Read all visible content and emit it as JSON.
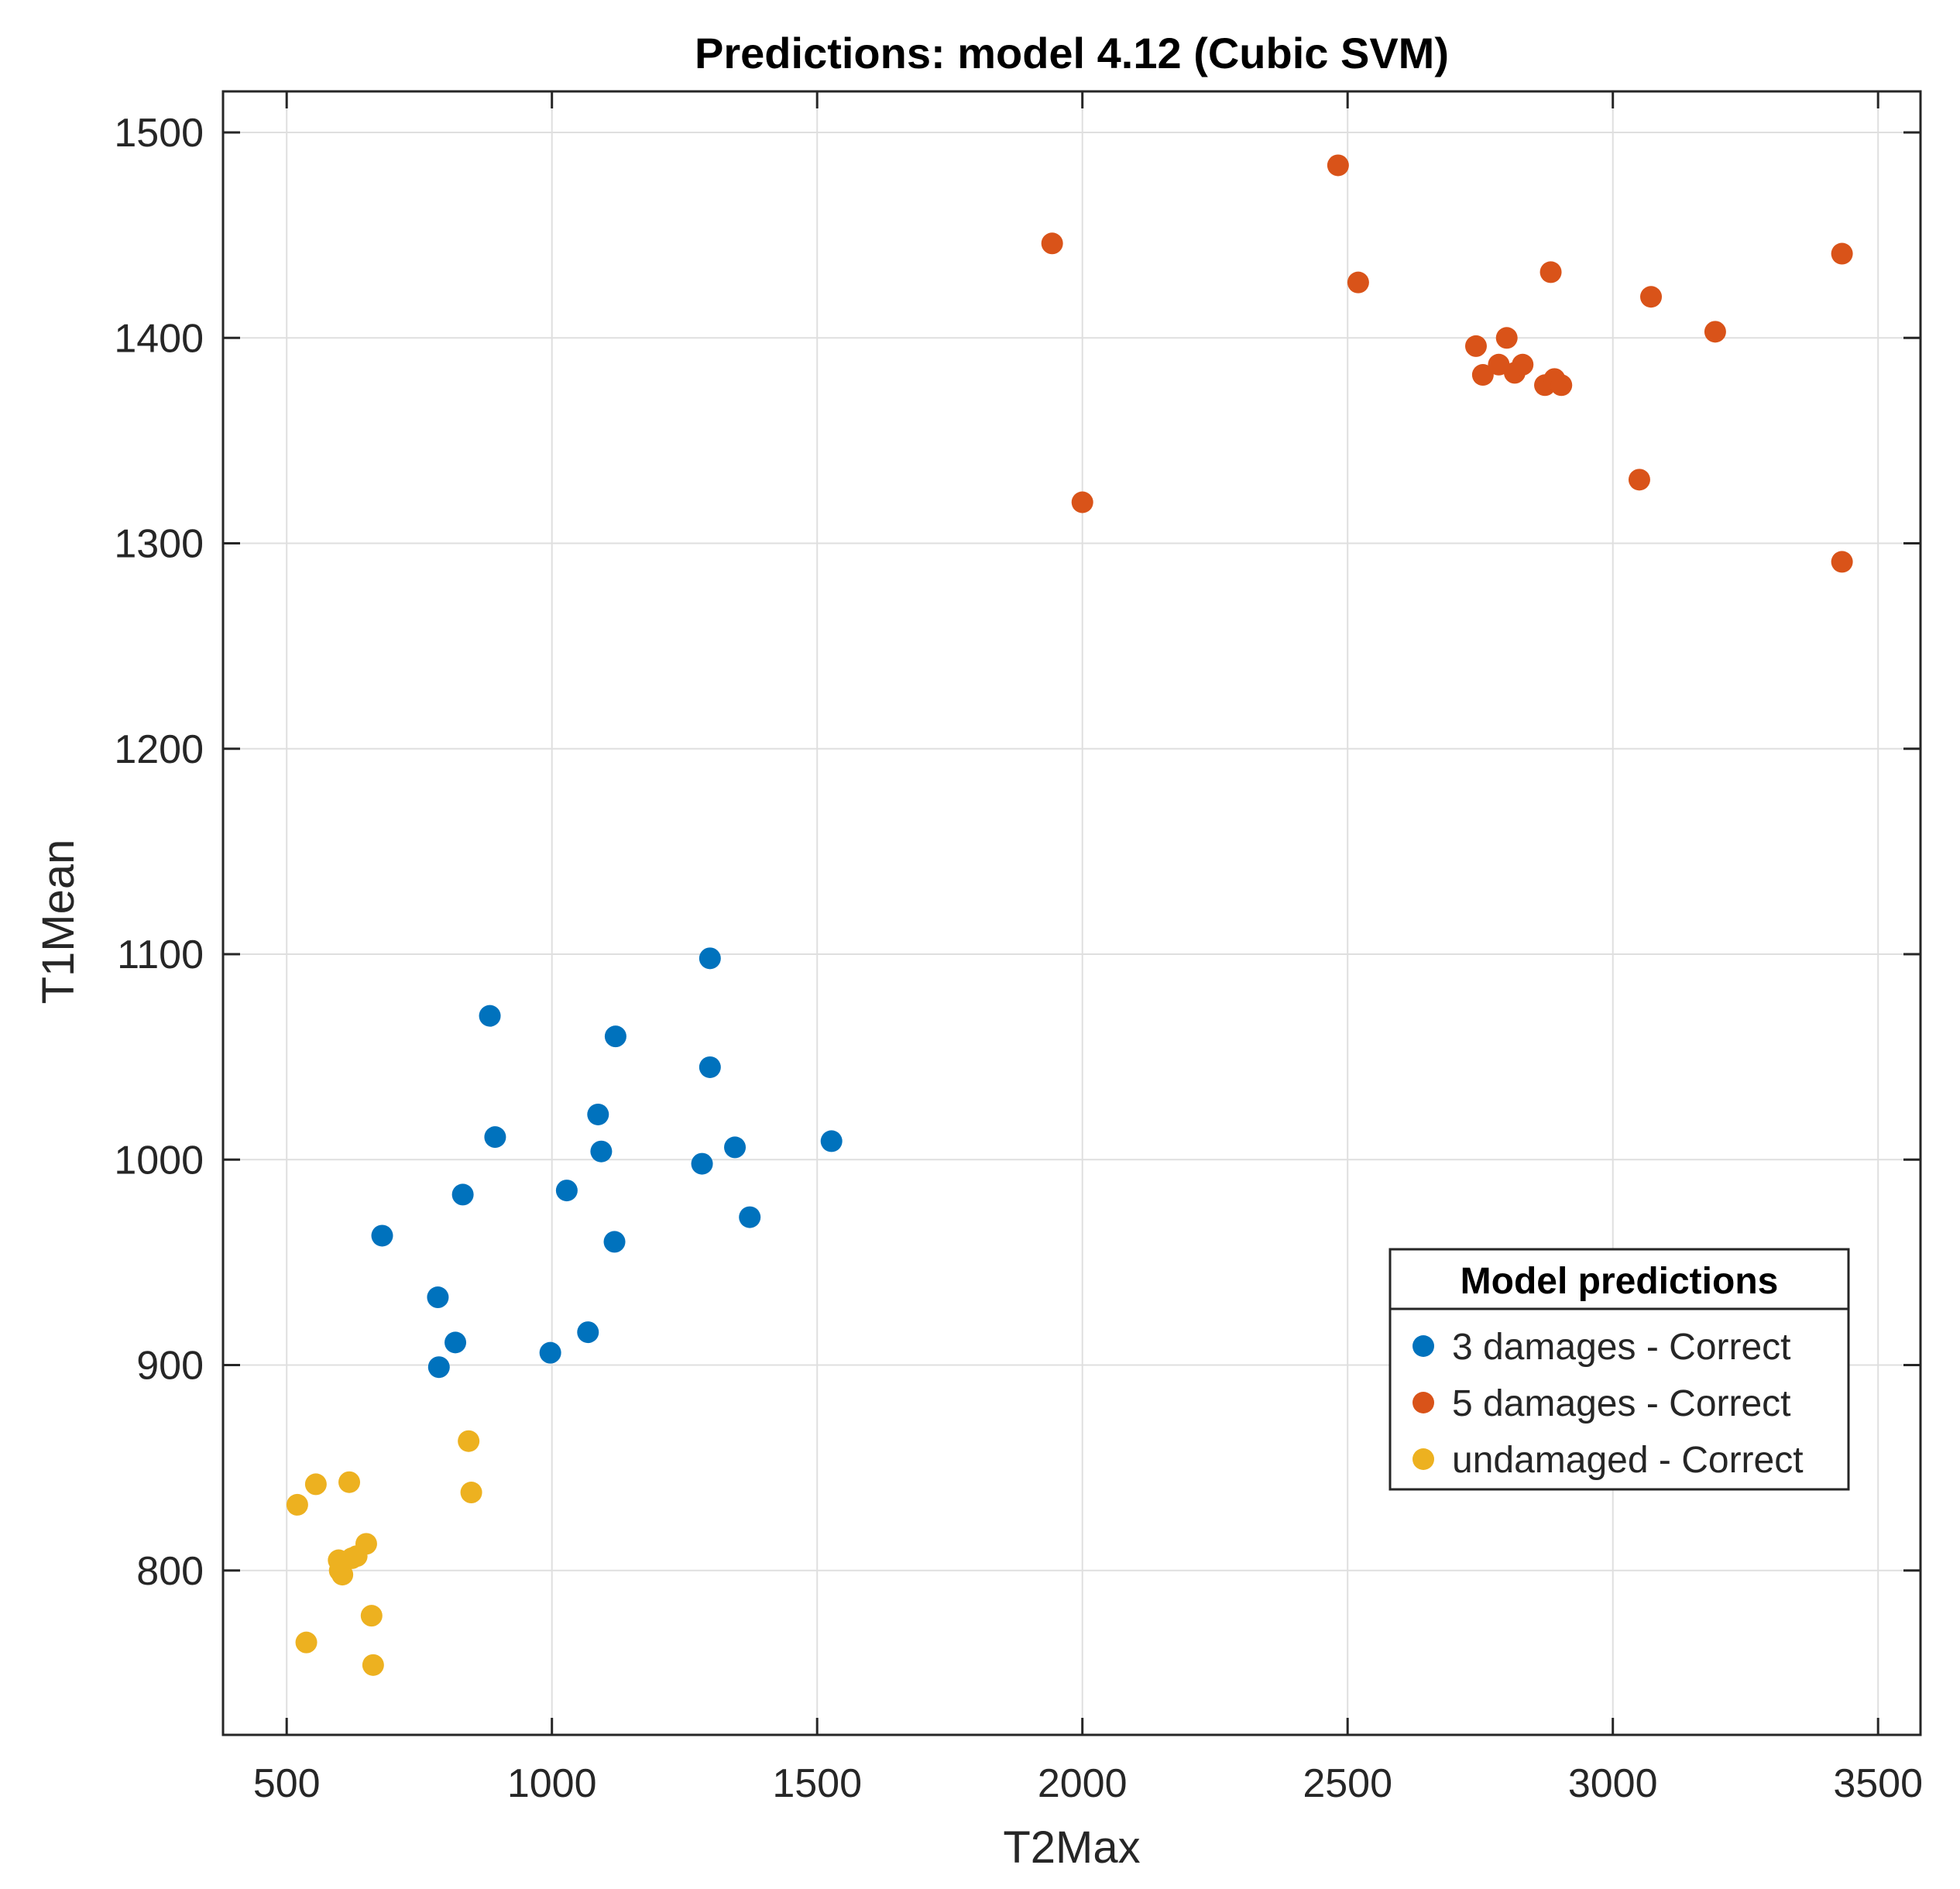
{
  "chart_data": {
    "type": "scatter",
    "title": "Predictions: model 4.12 (Cubic SVM)",
    "xlabel": "T2Max",
    "ylabel": "T1Mean",
    "xlim": [
      380,
      3580
    ],
    "ylim": [
      720,
      1520
    ],
    "xticks": [
      500,
      1000,
      1500,
      2000,
      2500,
      3000,
      3500
    ],
    "yticks": [
      800,
      900,
      1000,
      1100,
      1200,
      1300,
      1400,
      1500
    ],
    "grid": true,
    "legend": {
      "title": "Model predictions",
      "placement": "lower-right"
    },
    "series": [
      {
        "name": "3 damages - Correct",
        "color": "#0072BD",
        "points": [
          [
            680,
            963
          ],
          [
            785,
            933
          ],
          [
            787,
            899
          ],
          [
            818,
            911
          ],
          [
            832,
            983
          ],
          [
            883,
            1070
          ],
          [
            893,
            1011
          ],
          [
            997,
            906
          ],
          [
            1028,
            985
          ],
          [
            1068,
            916
          ],
          [
            1087,
            1022
          ],
          [
            1093,
            1004
          ],
          [
            1118,
            960
          ],
          [
            1120,
            1060
          ],
          [
            1283,
            998
          ],
          [
            1298,
            1098
          ],
          [
            1298,
            1045
          ],
          [
            1345,
            1006
          ],
          [
            1373,
            972
          ],
          [
            1527,
            1009
          ]
        ]
      },
      {
        "name": "5 damages - Correct",
        "color": "#D95319",
        "points": [
          [
            1943,
            1446
          ],
          [
            2000,
            1320
          ],
          [
            2482,
            1484
          ],
          [
            2520,
            1427
          ],
          [
            2742,
            1396
          ],
          [
            2755,
            1382
          ],
          [
            2785,
            1387
          ],
          [
            2800,
            1400
          ],
          [
            2815,
            1383
          ],
          [
            2830,
            1387
          ],
          [
            2872,
            1377
          ],
          [
            2883,
            1432
          ],
          [
            2890,
            1380
          ],
          [
            2903,
            1377
          ],
          [
            3050,
            1331
          ],
          [
            3072,
            1420
          ],
          [
            3193,
            1403
          ],
          [
            3432,
            1441
          ],
          [
            3432,
            1291
          ]
        ]
      },
      {
        "name": "undamaged - Correct",
        "color": "#EDB120",
        "points": [
          [
            520,
            832
          ],
          [
            537,
            765
          ],
          [
            555,
            842
          ],
          [
            598,
            805
          ],
          [
            600,
            800
          ],
          [
            605,
            798
          ],
          [
            618,
            843
          ],
          [
            623,
            806
          ],
          [
            632,
            807
          ],
          [
            650,
            813
          ],
          [
            660,
            778
          ],
          [
            663,
            754
          ],
          [
            843,
            863
          ],
          [
            848,
            838
          ]
        ]
      }
    ]
  }
}
